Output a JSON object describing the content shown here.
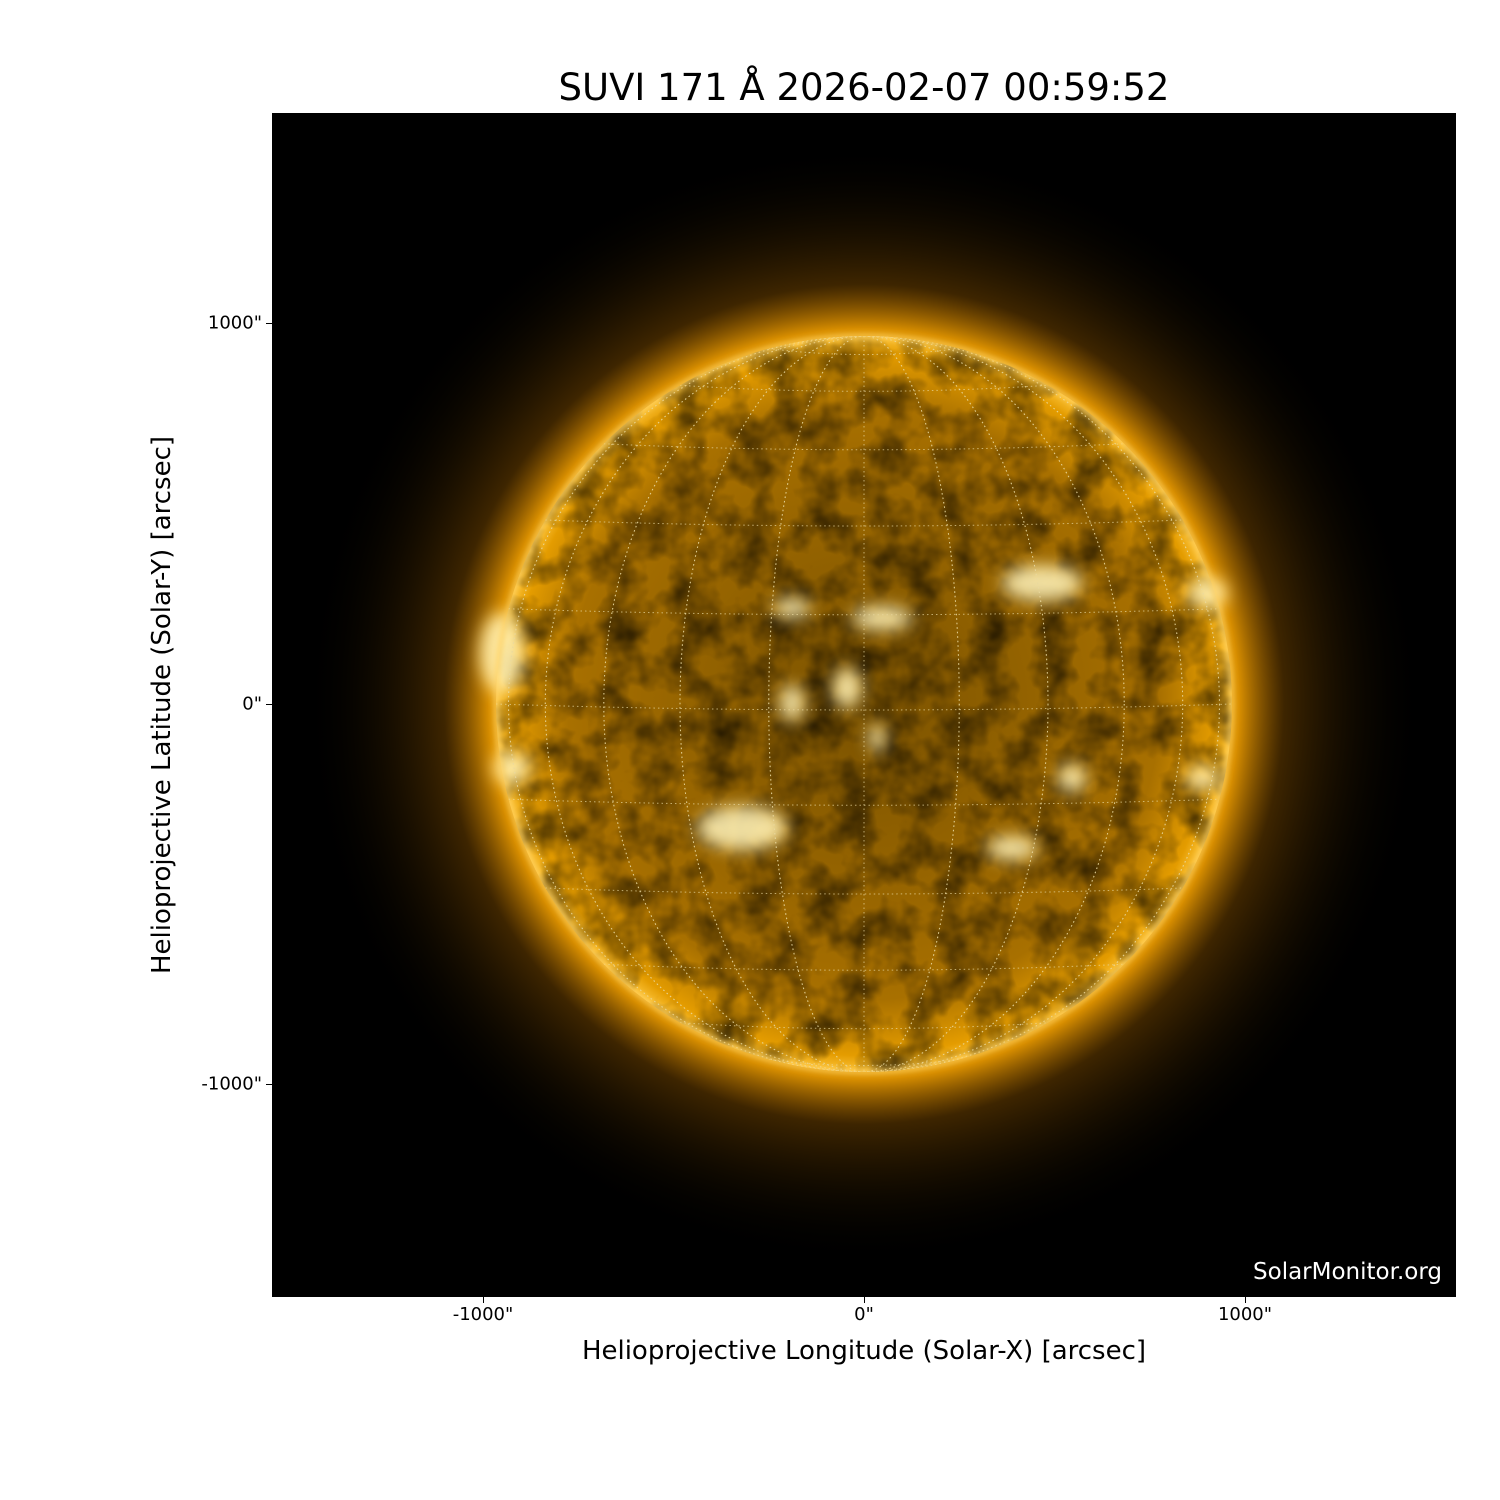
{
  "title": "SUVI 171 Å 2026-02-07 00:59:52",
  "x_axis": {
    "label": "Helioprojective Longitude (Solar-X) [arcsec]",
    "ticks": [
      "-1000\"",
      "0\"",
      "1000\""
    ]
  },
  "y_axis": {
    "label": "Helioprojective Latitude (Solar-Y) [arcsec]",
    "ticks": [
      "1000\"",
      "0\"",
      "-1000\""
    ]
  },
  "watermark": "SolarMonitor.org",
  "colors": {
    "sun": "#ffb000",
    "background": "#000000"
  }
}
